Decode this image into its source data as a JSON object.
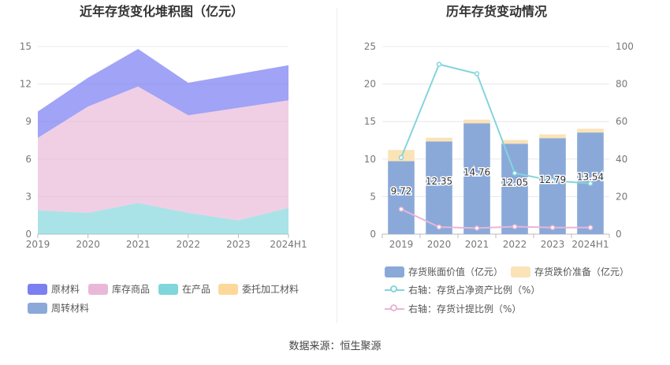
{
  "source": "数据来源：恒生聚源",
  "colors": {
    "raw_material": "#7B7FF2",
    "finished_goods": "#E9B8D9",
    "wip": "#80D6DB",
    "outsourced": "#FCD99A",
    "turnover": "#8AA9D9",
    "bar_value": "#8AA9D9",
    "bar_provision": "#FBE3B8",
    "line_ratio": "#86D4DC",
    "line_provision": "#E8B6D6"
  },
  "chart_data": [
    {
      "type": "area",
      "title": "近年存货变化堆积图（亿元）",
      "x": [
        "2019",
        "2020",
        "2021",
        "2022",
        "2023",
        "2024H1"
      ],
      "ylim": [
        0,
        15
      ],
      "yticks": [
        "0",
        "3",
        "6",
        "9",
        "12",
        "15"
      ],
      "stacked": true,
      "series": [
        {
          "name": "原材料",
          "values": [
            2.1,
            2.3,
            3.0,
            2.6,
            2.7,
            2.8
          ]
        },
        {
          "name": "库存商品",
          "values": [
            5.8,
            8.5,
            9.3,
            7.8,
            9.0,
            8.6
          ]
        },
        {
          "name": "在产品",
          "values": [
            1.9,
            1.7,
            2.5,
            1.7,
            1.1,
            2.1
          ]
        },
        {
          "name": "委托加工材料",
          "values": [
            0,
            0,
            0,
            0,
            0,
            0
          ]
        },
        {
          "name": "周转材料",
          "values": [
            0,
            0,
            0,
            0,
            0,
            0
          ]
        }
      ],
      "legend_position": "bottom-left"
    },
    {
      "type": "bar",
      "title": "历年存货变动情况",
      "categories": [
        "2019",
        "2020",
        "2021",
        "2022",
        "2023",
        "2024H1"
      ],
      "ylim": [
        0,
        25
      ],
      "yticks": [
        "0",
        "5",
        "10",
        "15",
        "20",
        "25"
      ],
      "y2lim": [
        0,
        100
      ],
      "y2ticks": [
        "0",
        "20",
        "40",
        "60",
        "80",
        "100"
      ],
      "series": [
        {
          "name": "存货账面价值（亿元）",
          "values": [
            9.72,
            12.35,
            14.76,
            12.05,
            12.79,
            13.54
          ],
          "labels": [
            "9.72",
            "12.35",
            "14.76",
            "12.05",
            "12.79",
            "13.54"
          ]
        },
        {
          "name": "存货跌价准备（亿元）",
          "values": [
            1.5,
            0.5,
            0.5,
            0.5,
            0.5,
            0.5
          ]
        },
        {
          "name": "右轴：存货占净资产比例（%）",
          "values": [
            40.8,
            90.5,
            85.5,
            32.5,
            28.5,
            27.0
          ],
          "axis": "right"
        },
        {
          "name": "右轴：存货计提比例（%）",
          "values": [
            13.3,
            3.8,
            3.2,
            4.0,
            3.5,
            3.5
          ],
          "axis": "right"
        }
      ],
      "legend_position": "bottom"
    }
  ]
}
